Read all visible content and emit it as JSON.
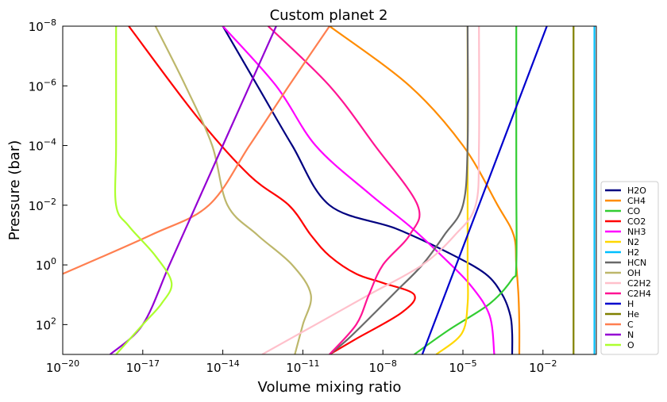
{
  "chart_data": {
    "type": "line",
    "title": "Custom planet 2",
    "xlabel": "Volume mixing ratio",
    "ylabel": "Pressure (bar)",
    "xscale": "log",
    "yscale": "log",
    "yaxis_inverted": true,
    "xlim": [
      1e-20,
      1
    ],
    "ylim": [
      1000,
      1e-08
    ],
    "x_ticks": [
      {
        "value": 1e-20,
        "base": "10",
        "exp": "−20"
      },
      {
        "value": 1e-17,
        "base": "10",
        "exp": "−17"
      },
      {
        "value": 1e-14,
        "base": "10",
        "exp": "−14"
      },
      {
        "value": 1e-11,
        "base": "10",
        "exp": "−11"
      },
      {
        "value": 1e-08,
        "base": "10",
        "exp": "−8"
      },
      {
        "value": 1e-05,
        "base": "10",
        "exp": "−5"
      },
      {
        "value": 0.01,
        "base": "10",
        "exp": "−2"
      }
    ],
    "y_ticks": [
      {
        "value": 1e-08,
        "base": "10",
        "exp": "−8"
      },
      {
        "value": 1e-06,
        "base": "10",
        "exp": "−6"
      },
      {
        "value": 0.0001,
        "base": "10",
        "exp": "−4"
      },
      {
        "value": 0.01,
        "base": "10",
        "exp": "−2"
      },
      {
        "value": 1,
        "base": "10",
        "exp": "0"
      },
      {
        "value": 100,
        "base": "10",
        "exp": "2"
      }
    ],
    "grid": false,
    "legend_position": "lower-right-outside",
    "series": [
      {
        "name": "H2O",
        "color": "#000080",
        "points": [
          [
            1e-14,
            1e-08
          ],
          [
            2e-13,
            1e-06
          ],
          [
            4e-12,
            0.0001
          ],
          [
            1e-10,
            0.01
          ],
          [
            3e-08,
            0.06
          ],
          [
            3e-06,
            0.4
          ],
          [
            7e-05,
            2
          ],
          [
            0.0003,
            10
          ],
          [
            0.0006,
            50
          ],
          [
            0.0007,
            200
          ],
          [
            0.0007,
            1000
          ]
        ]
      },
      {
        "name": "CH4",
        "color": "#ff8c00",
        "points": [
          [
            1e-10,
            1e-08
          ],
          [
            1e-07,
            1e-06
          ],
          [
            1e-05,
            0.0001
          ],
          [
            0.0002,
            0.01
          ],
          [
            0.0008,
            0.1
          ],
          [
            0.001,
            1
          ],
          [
            0.0012,
            10
          ],
          [
            0.0013,
            100
          ],
          [
            0.0013,
            1000
          ]
        ]
      },
      {
        "name": "CO",
        "color": "#32cd32",
        "points": [
          [
            0.001,
            1e-08
          ],
          [
            0.001,
            0.001
          ],
          [
            0.001,
            1
          ],
          [
            0.0007,
            3
          ],
          [
            0.0001,
            20
          ],
          [
            3e-06,
            150
          ],
          [
            1.5e-07,
            1000
          ]
        ]
      },
      {
        "name": "CO2",
        "color": "#ff0000",
        "points": [
          [
            3e-18,
            1e-08
          ],
          [
            1e-15,
            1e-05
          ],
          [
            1e-13,
            0.001
          ],
          [
            3e-12,
            0.01
          ],
          [
            2e-11,
            0.1
          ],
          [
            1e-10,
            0.5
          ],
          [
            1e-09,
            2
          ],
          [
            1e-08,
            4
          ],
          [
            1.5e-07,
            10
          ],
          [
            5e-08,
            40
          ],
          [
            1e-09,
            300
          ],
          [
            1e-10,
            1000
          ]
        ]
      },
      {
        "name": "NH3",
        "color": "#ff00ff",
        "points": [
          [
            1e-14,
            1e-08
          ],
          [
            1e-12,
            1e-06
          ],
          [
            3e-11,
            0.0001
          ],
          [
            3e-09,
            0.004
          ],
          [
            1e-07,
            0.05
          ],
          [
            2e-06,
            0.6
          ],
          [
            2e-05,
            5
          ],
          [
            0.0001,
            50
          ],
          [
            0.00015,
            1000
          ]
        ]
      },
      {
        "name": "N2",
        "color": "#ffd700",
        "points": [
          [
            1.5e-05,
            1e-08
          ],
          [
            1.5e-05,
            0.0001
          ],
          [
            1.5e-05,
            1
          ],
          [
            1.5e-05,
            20
          ],
          [
            9e-06,
            200
          ],
          [
            1e-06,
            1000
          ]
        ]
      },
      {
        "name": "H2",
        "color": "#00bfff",
        "points": [
          [
            0.85,
            1e-08
          ],
          [
            0.85,
            1000
          ]
        ]
      },
      {
        "name": "HCN",
        "color": "#696969",
        "points": [
          [
            1.5e-05,
            1e-08
          ],
          [
            1.5e-05,
            0.0001
          ],
          [
            1e-05,
            0.01
          ],
          [
            2e-06,
            0.1
          ],
          [
            3e-07,
            1
          ],
          [
            3e-08,
            8
          ],
          [
            5e-09,
            40
          ],
          [
            5e-10,
            300
          ],
          [
            1e-10,
            1000
          ]
        ]
      },
      {
        "name": "OH",
        "color": "#bdb76b",
        "points": [
          [
            3e-17,
            1e-08
          ],
          [
            4e-16,
            1e-06
          ],
          [
            4e-15,
            0.0001
          ],
          [
            1.5e-14,
            0.01
          ],
          [
            2e-13,
            0.1
          ],
          [
            4e-12,
            1
          ],
          [
            2e-11,
            10
          ],
          [
            1e-11,
            100
          ],
          [
            5e-12,
            1000
          ]
        ]
      },
      {
        "name": "C2H2",
        "color": "#ffc0cb",
        "points": [
          [
            4e-05,
            1e-08
          ],
          [
            4e-05,
            0.0001
          ],
          [
            3e-05,
            0.01
          ],
          [
            5e-06,
            0.1
          ],
          [
            3e-07,
            1
          ],
          [
            3e-09,
            10
          ],
          [
            3e-11,
            100
          ],
          [
            3e-13,
            1000
          ]
        ]
      },
      {
        "name": "C2H4",
        "color": "#ff1493",
        "points": [
          [
            5e-13,
            1e-08
          ],
          [
            1e-10,
            1e-06
          ],
          [
            5e-09,
            0.0001
          ],
          [
            2e-07,
            0.01
          ],
          [
            1e-07,
            0.1
          ],
          [
            1e-08,
            1
          ],
          [
            3e-09,
            10
          ],
          [
            1e-09,
            100
          ],
          [
            1e-10,
            1000
          ]
        ]
      },
      {
        "name": "H",
        "color": "#0000cd",
        "points": [
          [
            0.014,
            1e-08
          ],
          [
            3e-07,
            1000
          ]
        ]
      },
      {
        "name": "He",
        "color": "#808000",
        "points": [
          [
            0.14,
            1e-08
          ],
          [
            0.14,
            1000
          ]
        ]
      },
      {
        "name": "C",
        "color": "#ff7f50",
        "points": [
          [
            1e-10,
            1e-08
          ],
          [
            3e-12,
            1e-06
          ],
          [
            1e-13,
            0.0001
          ],
          [
            3e-15,
            0.01
          ],
          [
            2e-17,
            0.1
          ],
          [
            1e-20,
            2
          ]
        ]
      },
      {
        "name": "N",
        "color": "#9400d3",
        "points": [
          [
            1e-12,
            1e-08
          ],
          [
            1e-13,
            1e-06
          ],
          [
            1e-14,
            0.0001
          ],
          [
            1e-15,
            0.01
          ],
          [
            1e-16,
            1
          ],
          [
            1e-17,
            100
          ],
          [
            6e-19,
            1000
          ]
        ]
      },
      {
        "name": "O",
        "color": "#adff2f",
        "points": [
          [
            1e-18,
            1e-08
          ],
          [
            1e-18,
            0.0001
          ],
          [
            1e-18,
            0.01
          ],
          [
            3e-18,
            0.05
          ],
          [
            3e-17,
            0.5
          ],
          [
            1.2e-16,
            4
          ],
          [
            5e-17,
            20
          ],
          [
            1e-17,
            100
          ],
          [
            1e-18,
            1000
          ]
        ]
      }
    ]
  }
}
